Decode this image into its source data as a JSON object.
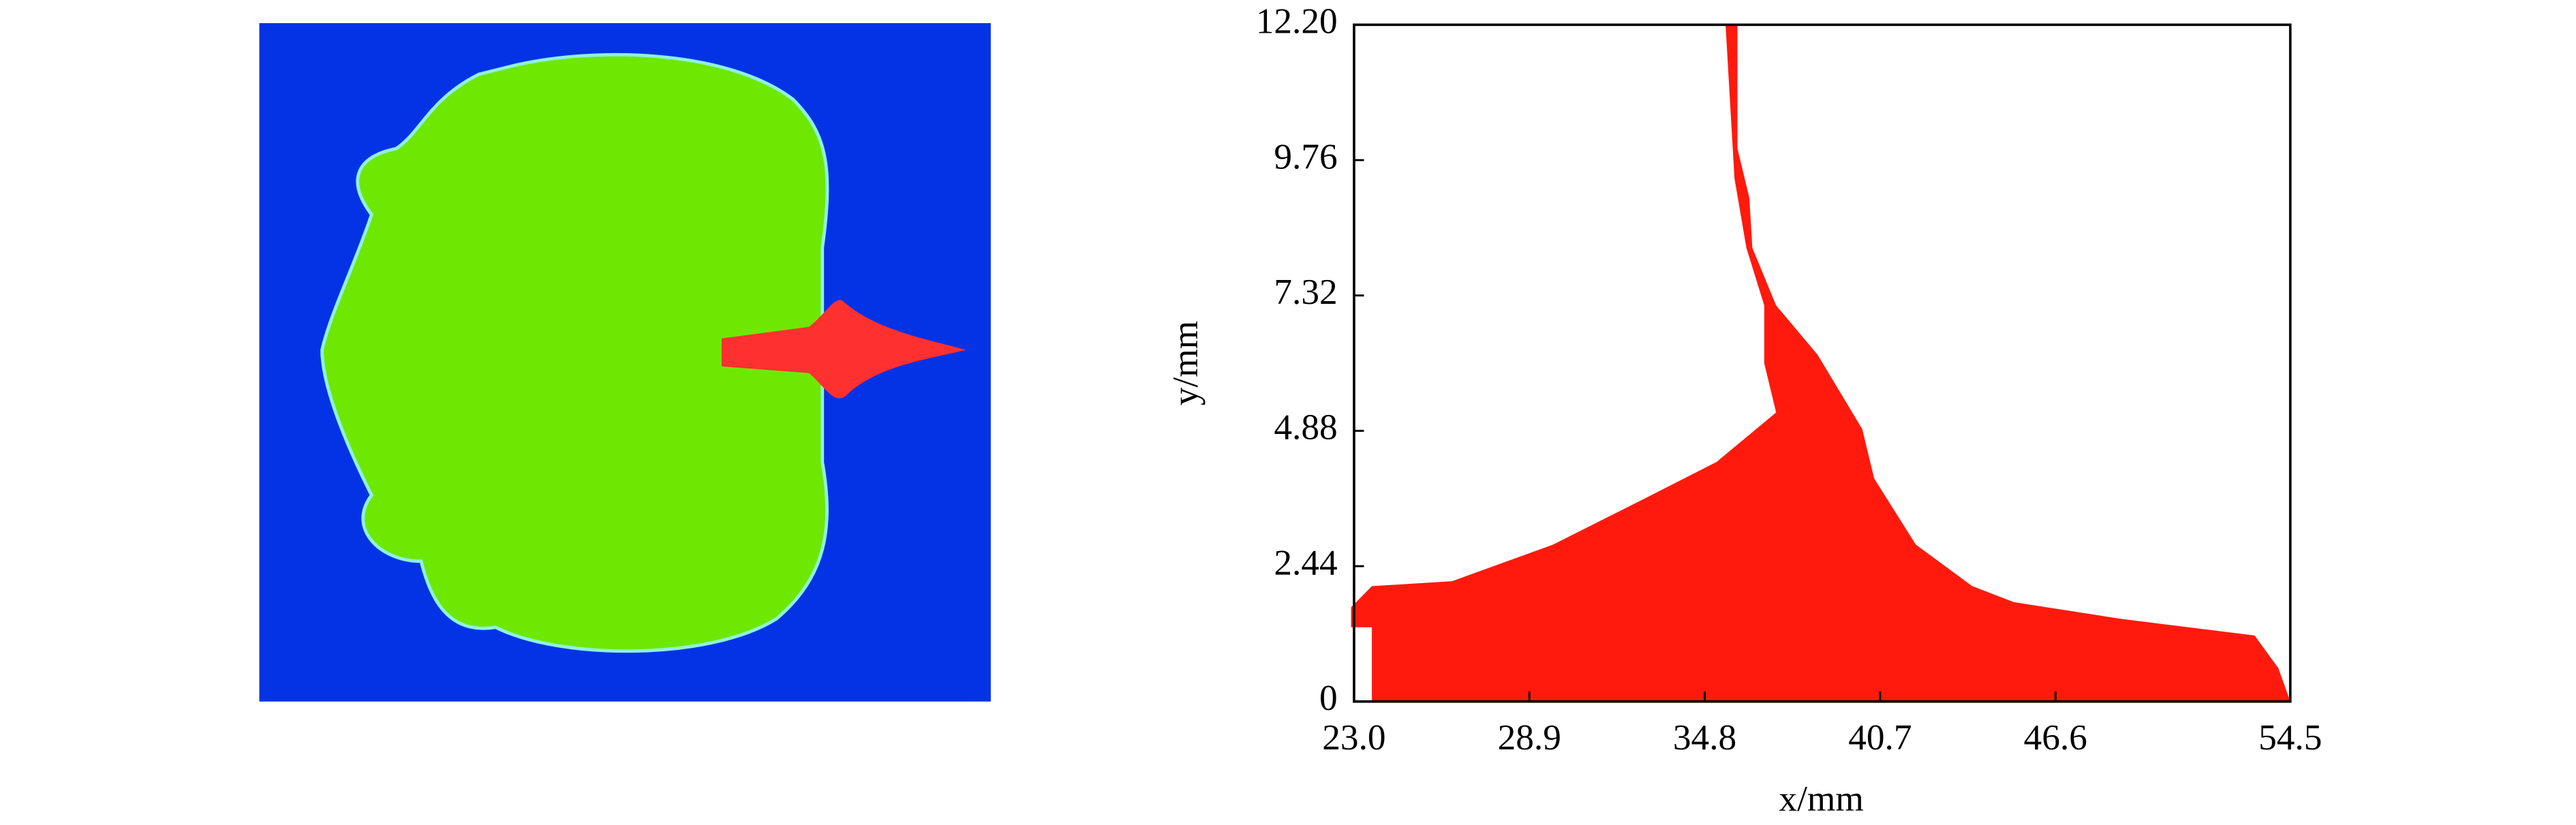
{
  "chart_data": {
    "type": "area",
    "x_label": "x/mm",
    "y_label": "y/mm",
    "x": [
      23.6,
      23.6,
      22.9,
      22.9,
      23.6,
      26.3,
      29.7,
      33.0,
      35.2,
      37.2,
      36.8,
      36.8,
      36.2,
      35.8,
      35.5,
      35.9,
      35.9,
      36.3,
      36.4,
      37.2,
      38.6,
      40.1,
      40.5,
      41.9,
      43.8,
      45.2,
      48.8,
      53.3,
      54.1,
      54.5
    ],
    "values": [
      0,
      1.34,
      1.34,
      1.7,
      2.08,
      2.17,
      2.83,
      3.72,
      4.32,
      5.21,
      6.1,
      7.14,
      8.18,
      9.43,
      12.2,
      12.2,
      9.97,
      9.08,
      8.18,
      7.14,
      6.25,
      4.91,
      4.02,
      2.83,
      2.08,
      1.79,
      1.49,
      1.19,
      0.6,
      0
    ],
    "color": "#ff1a0d",
    "xlim": [
      23.0,
      54.5
    ],
    "ylim": [
      0,
      12.2
    ],
    "xticks": [
      {
        "value": 23.0,
        "label": "23.0"
      },
      28.9,
      34.8,
      40.7,
      46.6,
      54.5
    ],
    "yticks": [
      0,
      2.44,
      4.88,
      7.32,
      9.76,
      {
        "value": 12.2,
        "label": "12.20"
      }
    ]
  }
}
